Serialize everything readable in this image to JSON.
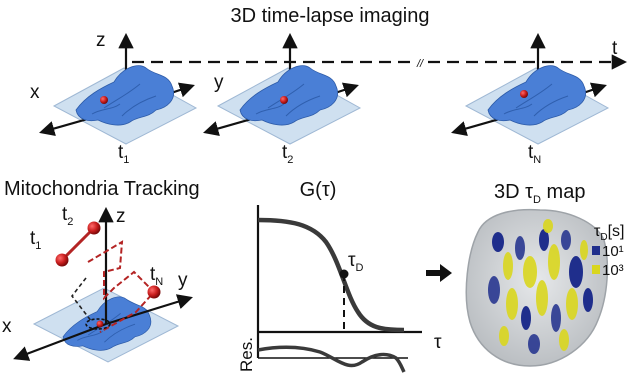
{
  "title": "3D time-lapse imaging",
  "panels": {
    "axes_top": {
      "z": "z",
      "x": "x",
      "y": "y",
      "t": "t"
    },
    "timepoints": [
      {
        "main": "t",
        "sub": "1"
      },
      {
        "main": "t",
        "sub": "2"
      },
      {
        "main": "t",
        "sub": "N"
      }
    ],
    "break_mark": "//"
  },
  "tracking": {
    "title": "Mitochondria Tracking",
    "axes": {
      "z": "z",
      "x": "x",
      "y": "y"
    },
    "points": [
      {
        "main": "t",
        "sub": "1"
      },
      {
        "main": "t",
        "sub": "2"
      },
      {
        "main": "t",
        "sub": "N"
      }
    ]
  },
  "correlation": {
    "title": "G(τ)",
    "tau_label_main": "τ",
    "tau_label_sub": "D",
    "x_axis_label": "τ",
    "residual_label": "Res."
  },
  "map": {
    "title_prefix": "3D ",
    "title_tau": "τ",
    "title_sub": "D",
    "title_suffix": " map",
    "legend_title_main": "τ",
    "legend_title_sub": "D",
    "legend_title_rest": "[s]",
    "legend": [
      {
        "label": "10¹",
        "color": "#1f2e8c"
      },
      {
        "label": "10³",
        "color": "#d9d61e"
      }
    ]
  },
  "colors": {
    "cell": "#4a7fd6",
    "plate": "#cfe0f0",
    "mito": "#cc1f1f",
    "curve": "#3a3a3a",
    "path": "#b42424",
    "outline": "#aeb4b8"
  }
}
